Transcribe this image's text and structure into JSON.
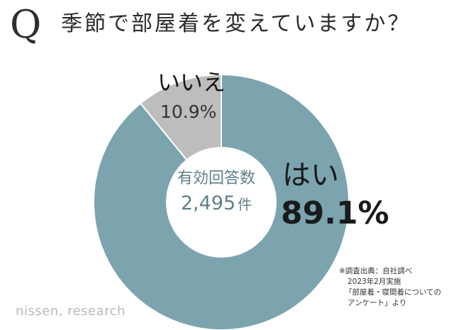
{
  "header": {
    "q_mark": "Q",
    "title": "季節で部屋着を変えていますか？"
  },
  "chart_data": {
    "type": "pie",
    "donut": true,
    "categories": [
      "はい",
      "いいえ"
    ],
    "values": [
      89.1,
      10.9
    ],
    "value_labels": [
      "89.1%",
      "10.9%"
    ],
    "colors": [
      "#7ba4af",
      "#bdbdbd"
    ],
    "center_title": "有効回答数",
    "center_value": "2,495",
    "center_unit": "件"
  },
  "source": {
    "line1": "※調査出典：自社調べ",
    "line2": "2023年2月実施",
    "line3": "「部屋着・寝間着についての",
    "line4": "アンケート」より"
  },
  "brand": "nissen, research"
}
